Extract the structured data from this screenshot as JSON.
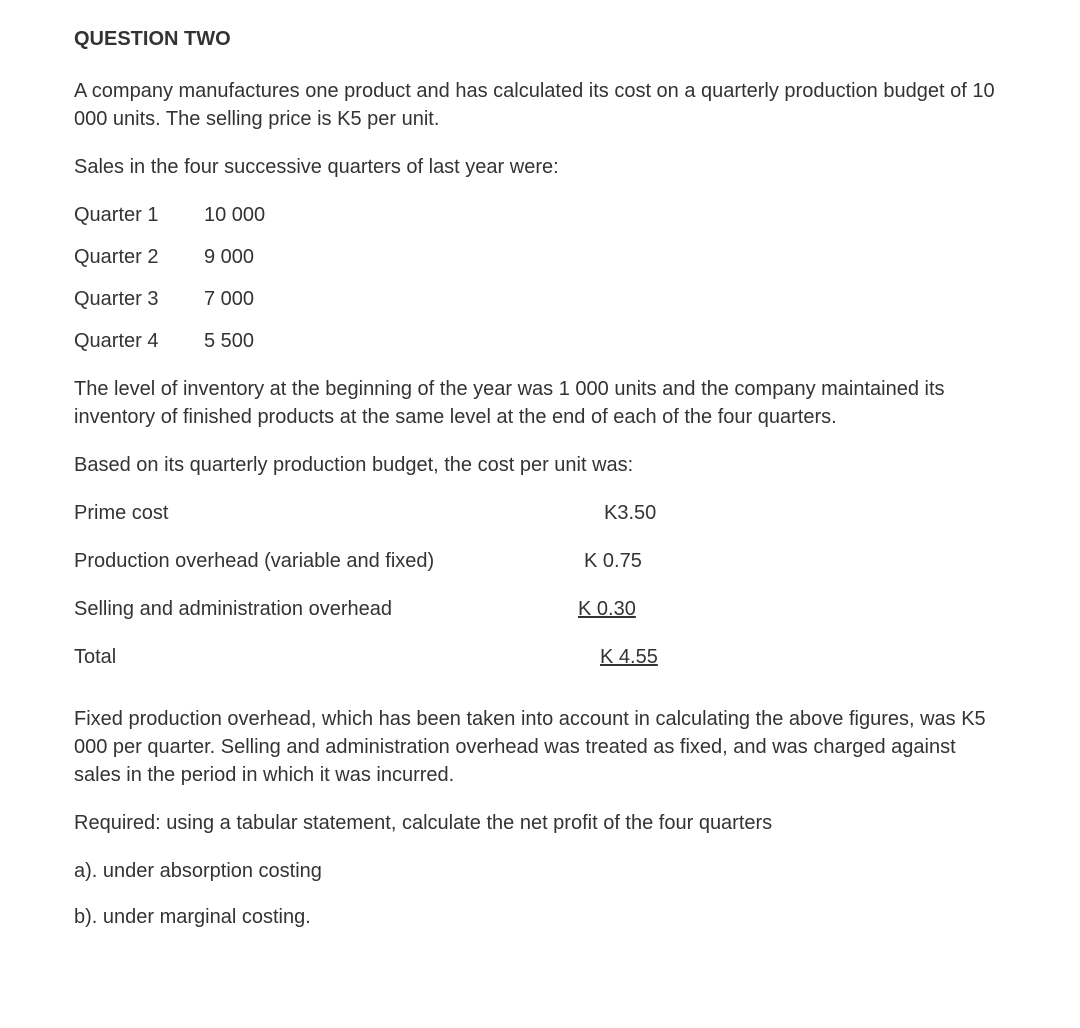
{
  "heading": "QUESTION TWO",
  "para1": "A company manufactures one product and has calculated its cost on a quarterly production budget of 10 000 units. The selling price is K5 per unit.",
  "para2": "Sales in the four successive quarters of last year were:",
  "quarters": [
    {
      "label": "Quarter 1",
      "value": "10 000"
    },
    {
      "label": "Quarter 2",
      "value": "9 000"
    },
    {
      "label": "Quarter 3",
      "value": "7 000"
    },
    {
      "label": "Quarter 4",
      "value": "5 500"
    }
  ],
  "para3": "The level of inventory at the beginning of the year was 1 000 units and the company maintained its inventory of finished products at the same level at the end of each of the four quarters.",
  "para4": "Based on its quarterly production budget, the cost per unit was:",
  "costs": [
    {
      "label": "Prime cost",
      "value": "K3.50"
    },
    {
      "label": "Production overhead (variable and fixed)",
      "value": "K 0.75"
    },
    {
      "label": "Selling and administration overhead",
      "value": "K 0.30"
    },
    {
      "label": "Total",
      "value": "K 4.55"
    }
  ],
  "para5": "Fixed production overhead, which has been taken into account in calculating the above figures, was K5 000 per quarter. Selling and administration overhead was treated as fixed, and was charged against sales in the period in which it was incurred.",
  "para6": "Required: using a tabular statement, calculate the net profit of the four quarters",
  "reqA": "a). under absorption costing",
  "reqB": "b). under marginal costing."
}
